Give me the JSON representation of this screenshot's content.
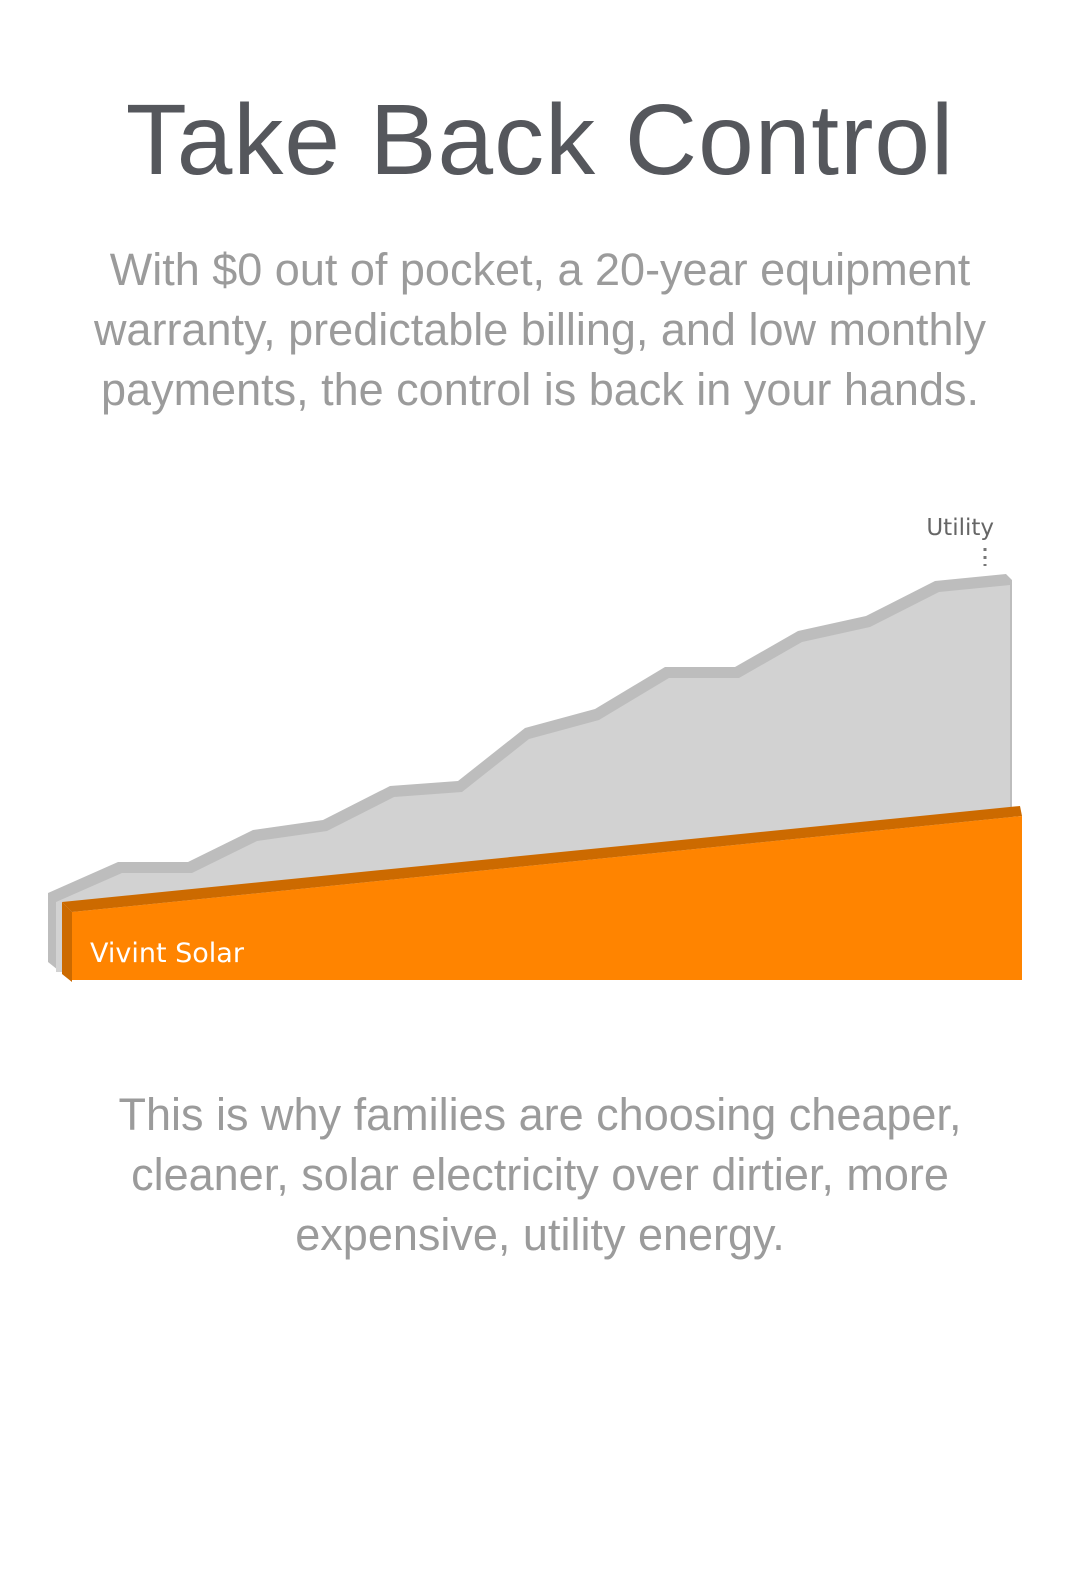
{
  "title": "Take Back Control",
  "intro": "With $0 out of pocket, a 20-year equipment warranty, predictable billing, and low monthly payments, the control is back in your hands.",
  "illustration": {
    "utility_label": "Utility",
    "solar_label": "Vivint Solar"
  },
  "outro": "This is why families are choosing cheaper, cleaner, solar electricity over dirtier, more expensive, utility energy."
}
